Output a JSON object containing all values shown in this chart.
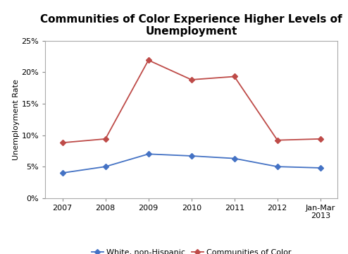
{
  "title": "Communities of Color Experience Higher Levels of\nUnemployment",
  "ylabel": "Unemployment Rate",
  "x_labels": [
    "2007",
    "2008",
    "2009",
    "2010",
    "2011",
    "2012",
    "Jan-Mar\n2013"
  ],
  "x_values": [
    0,
    1,
    2,
    3,
    4,
    5,
    6
  ],
  "white_values": [
    0.04,
    0.05,
    0.07,
    0.067,
    0.063,
    0.05,
    0.048
  ],
  "color_values": [
    0.088,
    0.094,
    0.219,
    0.188,
    0.193,
    0.092,
    0.094
  ],
  "white_color": "#4472C4",
  "color_color": "#BE4B48",
  "white_label": "White, non-Hispanic",
  "color_label": "Communities of Color",
  "ylim": [
    0,
    0.25
  ],
  "yticks": [
    0.0,
    0.05,
    0.1,
    0.15,
    0.2,
    0.25
  ],
  "ytick_labels": [
    "0%",
    "5%",
    "10%",
    "15%",
    "20%",
    "25%"
  ],
  "background_color": "#ffffff",
  "title_fontsize": 11,
  "axis_label_fontsize": 8,
  "tick_fontsize": 8,
  "legend_fontsize": 8,
  "marker": "D",
  "linewidth": 1.3,
  "markersize": 4
}
